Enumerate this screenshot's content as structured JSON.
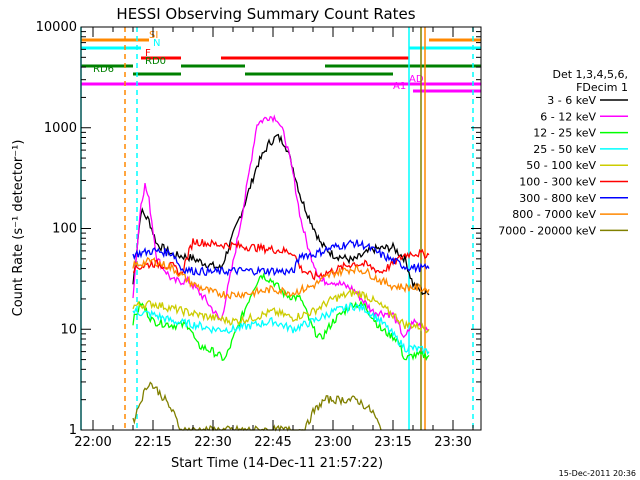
{
  "chart_data": {
    "type": "line",
    "title": "HESSI Observing Summary Count Rates",
    "xlabel": "Start Time (14-Dec-11 21:57:22)",
    "ylabel": "Count Rate (s⁻¹ detector⁻¹)",
    "y_scale": "log",
    "ylim": [
      1,
      10000
    ],
    "xlim": [
      "21:57",
      "23:37"
    ],
    "x_ticks": [
      "22:00",
      "22:15",
      "22:30",
      "22:45",
      "23:00",
      "23:15",
      "23:30"
    ],
    "y_ticks": [
      "1",
      "10",
      "100",
      "1000",
      "10000"
    ],
    "footer": "15-Dec-2011 20:36",
    "legend_header": [
      "Det 1,3,4,5,6,",
      "FDecim 1"
    ],
    "legend_position": "right",
    "series": [
      {
        "name": "3 - 6 keV",
        "color": "#000000",
        "points": [
          [
            "22:10",
            28
          ],
          [
            "22:12",
            150
          ],
          [
            "22:14",
            120
          ],
          [
            "22:16",
            70
          ],
          [
            "22:20",
            55
          ],
          [
            "22:24",
            52
          ],
          [
            "22:28",
            45
          ],
          [
            "22:32",
            40
          ],
          [
            "22:35",
            85
          ],
          [
            "22:38",
            180
          ],
          [
            "22:41",
            420
          ],
          [
            "22:44",
            700
          ],
          [
            "22:46",
            820
          ],
          [
            "22:48",
            700
          ],
          [
            "22:50",
            400
          ],
          [
            "22:52",
            200
          ],
          [
            "22:54",
            130
          ],
          [
            "22:57",
            70
          ],
          [
            "23:00",
            55
          ],
          [
            "23:05",
            48
          ],
          [
            "23:10",
            62
          ],
          [
            "23:15",
            65
          ],
          [
            "23:18",
            50
          ],
          [
            "23:20",
            28
          ],
          [
            "23:22",
            24
          ],
          [
            "23:24",
            22
          ]
        ]
      },
      {
        "name": "6 - 12 keV",
        "color": "#ff00ff",
        "points": [
          [
            "22:10",
            22
          ],
          [
            "22:12",
            180
          ],
          [
            "22:13",
            270
          ],
          [
            "22:14",
            190
          ],
          [
            "22:16",
            50
          ],
          [
            "22:20",
            30
          ],
          [
            "22:24",
            30
          ],
          [
            "22:28",
            20
          ],
          [
            "22:32",
            12
          ],
          [
            "22:35",
            45
          ],
          [
            "22:38",
            200
          ],
          [
            "22:41",
            1100
          ],
          [
            "22:44",
            1300
          ],
          [
            "22:46",
            1250
          ],
          [
            "22:48",
            800
          ],
          [
            "22:50",
            350
          ],
          [
            "22:52",
            120
          ],
          [
            "22:54",
            60
          ],
          [
            "22:57",
            30
          ],
          [
            "23:00",
            30
          ],
          [
            "23:05",
            25
          ],
          [
            "23:10",
            15
          ],
          [
            "23:15",
            14
          ],
          [
            "23:18",
            8
          ],
          [
            "23:20",
            12
          ],
          [
            "23:24",
            10
          ]
        ]
      },
      {
        "name": "12 - 25 keV",
        "color": "#00ff00",
        "points": [
          [
            "22:10",
            12
          ],
          [
            "22:12",
            18
          ],
          [
            "22:15",
            12
          ],
          [
            "22:20",
            11
          ],
          [
            "22:24",
            11
          ],
          [
            "22:26",
            7
          ],
          [
            "22:30",
            6
          ],
          [
            "22:33",
            5
          ],
          [
            "22:36",
            10
          ],
          [
            "22:40",
            25
          ],
          [
            "22:42",
            35
          ],
          [
            "22:45",
            30
          ],
          [
            "22:48",
            22
          ],
          [
            "22:52",
            20
          ],
          [
            "22:55",
            10
          ],
          [
            "22:57",
            8
          ],
          [
            "23:00",
            12
          ],
          [
            "23:05",
            18
          ],
          [
            "23:08",
            17
          ],
          [
            "23:12",
            10
          ],
          [
            "23:16",
            8
          ],
          [
            "23:18",
            5
          ],
          [
            "23:20",
            5.5
          ],
          [
            "23:24",
            5.5
          ]
        ]
      },
      {
        "name": "25 - 50 keV",
        "color": "#00ffff",
        "points": [
          [
            "22:10",
            15
          ],
          [
            "22:15",
            14
          ],
          [
            "22:20",
            12
          ],
          [
            "22:26",
            11
          ],
          [
            "22:30",
            10
          ],
          [
            "22:35",
            10
          ],
          [
            "22:40",
            11
          ],
          [
            "22:45",
            12
          ],
          [
            "22:50",
            10
          ],
          [
            "22:55",
            12
          ],
          [
            "23:00",
            15
          ],
          [
            "23:05",
            17
          ],
          [
            "23:08",
            16
          ],
          [
            "23:12",
            12
          ],
          [
            "23:16",
            8
          ],
          [
            "23:18",
            6.5
          ],
          [
            "23:20",
            6.5
          ],
          [
            "23:24",
            6
          ]
        ]
      },
      {
        "name": "50 - 100 keV",
        "color": "#cccc00",
        "points": [
          [
            "22:10",
            17
          ],
          [
            "22:15",
            18
          ],
          [
            "22:20",
            16
          ],
          [
            "22:26",
            14
          ],
          [
            "22:30",
            13
          ],
          [
            "22:35",
            12
          ],
          [
            "22:40",
            13
          ],
          [
            "22:45",
            15
          ],
          [
            "22:50",
            13
          ],
          [
            "22:55",
            15
          ],
          [
            "23:00",
            20
          ],
          [
            "23:05",
            23
          ],
          [
            "23:08",
            22
          ],
          [
            "23:12",
            17
          ],
          [
            "23:16",
            13
          ],
          [
            "23:18",
            11
          ],
          [
            "23:20",
            11
          ],
          [
            "23:24",
            10
          ]
        ]
      },
      {
        "name": "100 - 300 keV",
        "color": "#ff0000",
        "points": [
          [
            "22:10",
            40
          ],
          [
            "22:15",
            45
          ],
          [
            "22:20",
            42
          ],
          [
            "22:22",
            35
          ],
          [
            "22:25",
            75
          ],
          [
            "22:30",
            70
          ],
          [
            "22:35",
            68
          ],
          [
            "22:40",
            65
          ],
          [
            "22:45",
            62
          ],
          [
            "22:50",
            58
          ],
          [
            "22:52",
            40
          ],
          [
            "22:55",
            33
          ],
          [
            "23:00",
            38
          ],
          [
            "23:05",
            45
          ],
          [
            "23:08",
            44
          ],
          [
            "23:12",
            37
          ],
          [
            "23:15",
            45
          ],
          [
            "23:18",
            55
          ],
          [
            "23:20",
            57
          ],
          [
            "23:24",
            55
          ]
        ]
      },
      {
        "name": "300 - 800 keV",
        "color": "#0000ff",
        "points": [
          [
            "22:10",
            55
          ],
          [
            "22:15",
            60
          ],
          [
            "22:20",
            57
          ],
          [
            "22:22",
            40
          ],
          [
            "22:25",
            38
          ],
          [
            "22:30",
            37
          ],
          [
            "22:35",
            38
          ],
          [
            "22:40",
            38
          ],
          [
            "22:45",
            38
          ],
          [
            "22:50",
            37
          ],
          [
            "22:52",
            55
          ],
          [
            "22:55",
            55
          ],
          [
            "23:00",
            65
          ],
          [
            "23:05",
            72
          ],
          [
            "23:08",
            68
          ],
          [
            "23:12",
            55
          ],
          [
            "23:15",
            48
          ],
          [
            "23:18",
            42
          ],
          [
            "23:20",
            41
          ],
          [
            "23:24",
            40
          ]
        ]
      },
      {
        "name": "800 - 7000 keV",
        "color": "#ff8800",
        "points": [
          [
            "22:10",
            43
          ],
          [
            "22:15",
            48
          ],
          [
            "22:20",
            40
          ],
          [
            "22:25",
            28
          ],
          [
            "22:30",
            23
          ],
          [
            "22:35",
            22
          ],
          [
            "22:40",
            23
          ],
          [
            "22:45",
            25
          ],
          [
            "22:50",
            23
          ],
          [
            "22:55",
            27
          ],
          [
            "23:00",
            36
          ],
          [
            "23:05",
            40
          ],
          [
            "23:08",
            38
          ],
          [
            "23:12",
            30
          ],
          [
            "23:15",
            27
          ],
          [
            "23:18",
            26
          ],
          [
            "23:20",
            26
          ],
          [
            "23:24",
            25
          ]
        ]
      },
      {
        "name": "7000 - 20000 keV",
        "color": "#808000",
        "points": [
          [
            "22:10",
            1.2
          ],
          [
            "22:12",
            2
          ],
          [
            "22:14",
            3
          ],
          [
            "22:16",
            2.5
          ],
          [
            "22:18",
            2
          ],
          [
            "22:20",
            1.5
          ],
          [
            "22:22",
            1
          ],
          [
            "22:53",
            1
          ],
          [
            "22:55",
            1.5
          ],
          [
            "22:58",
            2
          ],
          [
            "23:02",
            2
          ],
          [
            "23:06",
            2
          ],
          [
            "23:10",
            1.5
          ],
          [
            "23:12",
            1
          ]
        ]
      }
    ],
    "flag_bars": [
      {
        "label": "SI",
        "color": "#ff8800",
        "segments": [
          [
            "21:57",
            "22:14"
          ],
          [
            "23:24",
            "23:37"
          ]
        ]
      },
      {
        "label": "N",
        "color": "#00ffff",
        "segments": [
          [
            "21:57",
            "22:12"
          ],
          [
            "23:19",
            "23:37"
          ]
        ]
      },
      {
        "label": "F",
        "color": "#ff0000",
        "segments": [
          [
            "22:12",
            "22:22"
          ],
          [
            "22:32",
            "23:19"
          ]
        ]
      },
      {
        "label": "RD0",
        "color": "#008000",
        "segments": [
          [
            "21:57",
            "22:10"
          ],
          [
            "22:22",
            "22:38"
          ],
          [
            "22:58",
            "23:37"
          ]
        ]
      },
      {
        "label": "RD6",
        "color": "#008000",
        "segments": [
          [
            "22:10",
            "22:22"
          ],
          [
            "22:38",
            "22:58"
          ],
          [
            "22:58",
            "23:15"
          ]
        ]
      },
      {
        "label": "AD",
        "color": "#ff00ff",
        "segments": [
          [
            "21:57",
            "23:37"
          ]
        ]
      },
      {
        "label": "A1",
        "color": "#ff00ff",
        "segments": [
          [
            "23:20",
            "23:37"
          ]
        ]
      }
    ],
    "vertical_markers": [
      {
        "time": "22:08",
        "color": "#ff8800",
        "style": "dashed"
      },
      {
        "time": "22:11",
        "color": "#00ffff",
        "style": "dashed"
      },
      {
        "time": "23:19",
        "color": "#00ffff",
        "style": "solid"
      },
      {
        "time": "23:22",
        "color": "#808000",
        "style": "solid"
      },
      {
        "time": "23:23",
        "color": "#ff8800",
        "style": "solid"
      },
      {
        "time": "23:35",
        "color": "#00ffff",
        "style": "dashed"
      },
      {
        "time": "21:57",
        "color": "#00ffff",
        "style": "solid"
      }
    ]
  }
}
